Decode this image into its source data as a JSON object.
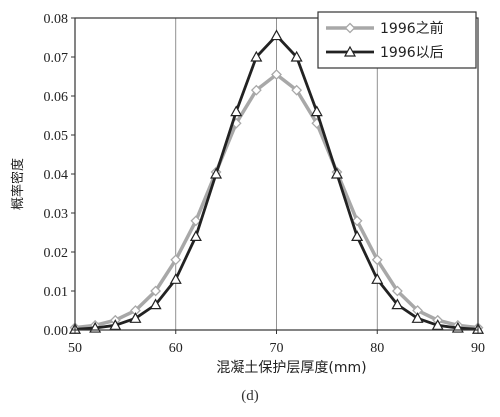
{
  "chart_data": {
    "type": "line",
    "title": "",
    "xlabel": "混凝土保护层厚度(mm)",
    "ylabel": "概率密度",
    "xlim": [
      50,
      90
    ],
    "ylim": [
      0,
      0.08
    ],
    "xticks": [
      "50",
      "60",
      "70",
      "80",
      "90"
    ],
    "yticks": [
      "0.00",
      "0.01",
      "0.02",
      "0.03",
      "0.04",
      "0.05",
      "0.06",
      "0.07",
      "0.08"
    ],
    "grid": "vertical",
    "legend": "top-right",
    "x": [
      50,
      52,
      54,
      56,
      58,
      60,
      62,
      64,
      66,
      68,
      70,
      72,
      74,
      76,
      78,
      80,
      82,
      84,
      86,
      88,
      90
    ],
    "series": [
      {
        "name": "1996之前",
        "color": "#a8a8a8",
        "marker": "diamond",
        "values": [
          0.0006,
          0.0012,
          0.0025,
          0.005,
          0.01,
          0.018,
          0.028,
          0.0405,
          0.053,
          0.0615,
          0.0655,
          0.0615,
          0.053,
          0.0405,
          0.028,
          0.018,
          0.01,
          0.005,
          0.0025,
          0.0012,
          0.0006
        ]
      },
      {
        "name": "1996以后",
        "color": "#222222",
        "marker": "triangle",
        "values": [
          0.0002,
          0.0005,
          0.0012,
          0.003,
          0.0065,
          0.013,
          0.024,
          0.04,
          0.056,
          0.07,
          0.0755,
          0.07,
          0.056,
          0.04,
          0.024,
          0.013,
          0.0065,
          0.003,
          0.0012,
          0.0005,
          0.0002
        ]
      }
    ]
  },
  "caption": "(d)"
}
